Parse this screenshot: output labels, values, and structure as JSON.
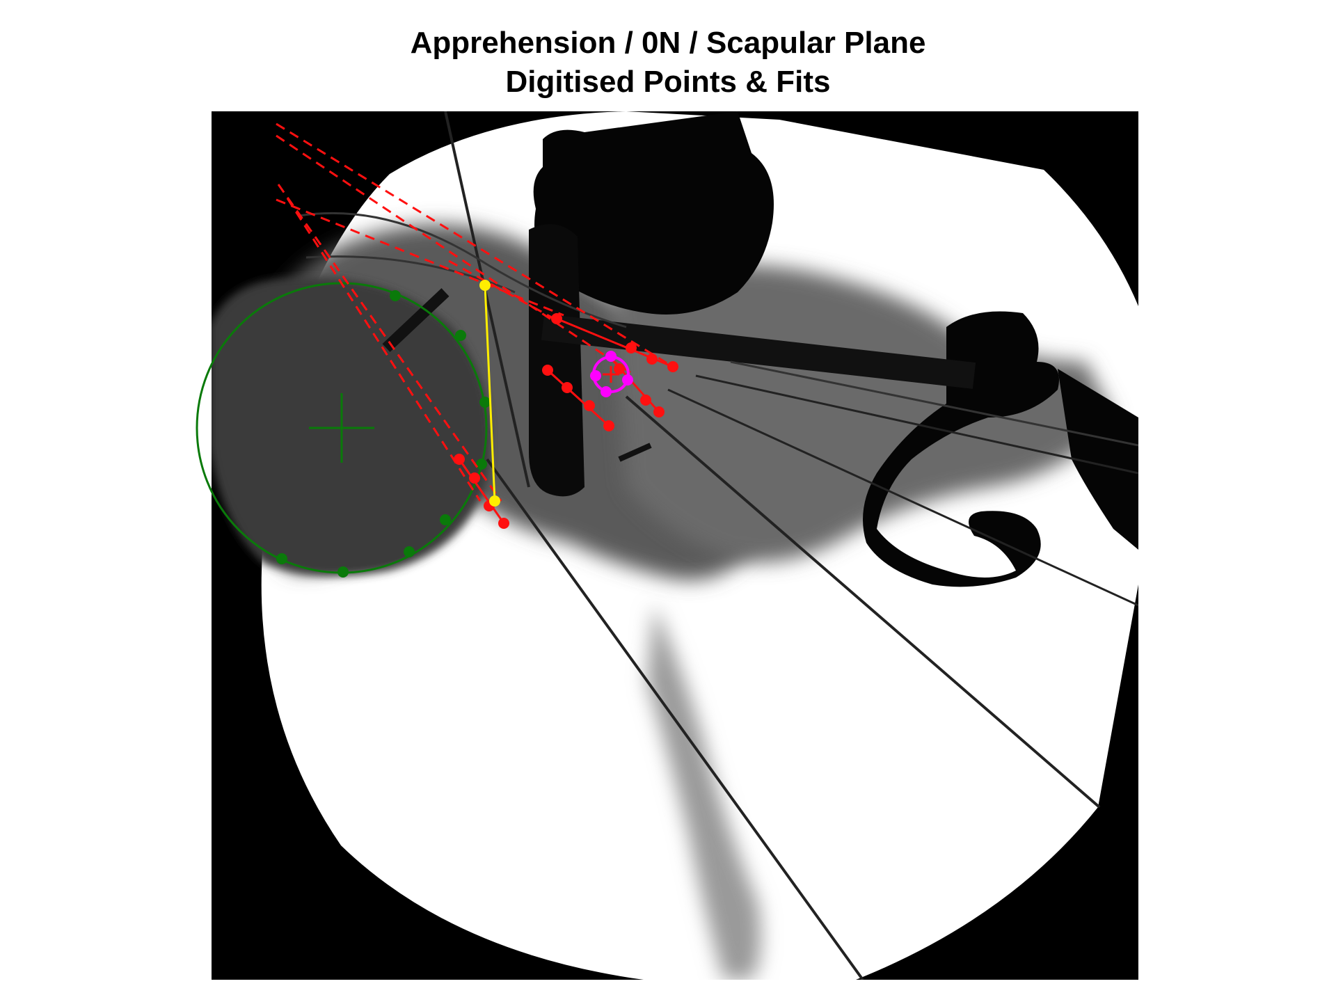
{
  "figure": {
    "title_line1": "Apprehension / 0N / Scapular Plane",
    "title_line2": "Digitised Points & Fits"
  },
  "colors": {
    "background": "#ffffff",
    "image_frame": "#000000",
    "humeral_head_fit": "#0a7a0a",
    "glenoid_rim": "#ff1010",
    "glenoid_axis": "#ffee00",
    "marker": "#ff00ff"
  },
  "annotations": {
    "humeral_head": {
      "type": "circle-fit",
      "icon": "crosshair-icon"
    },
    "glenoid_lines": {
      "type": "line-fits",
      "style": "dashed-extension"
    },
    "glenoid_axis": {
      "type": "segment"
    },
    "marker": {
      "type": "circle-fit"
    }
  }
}
